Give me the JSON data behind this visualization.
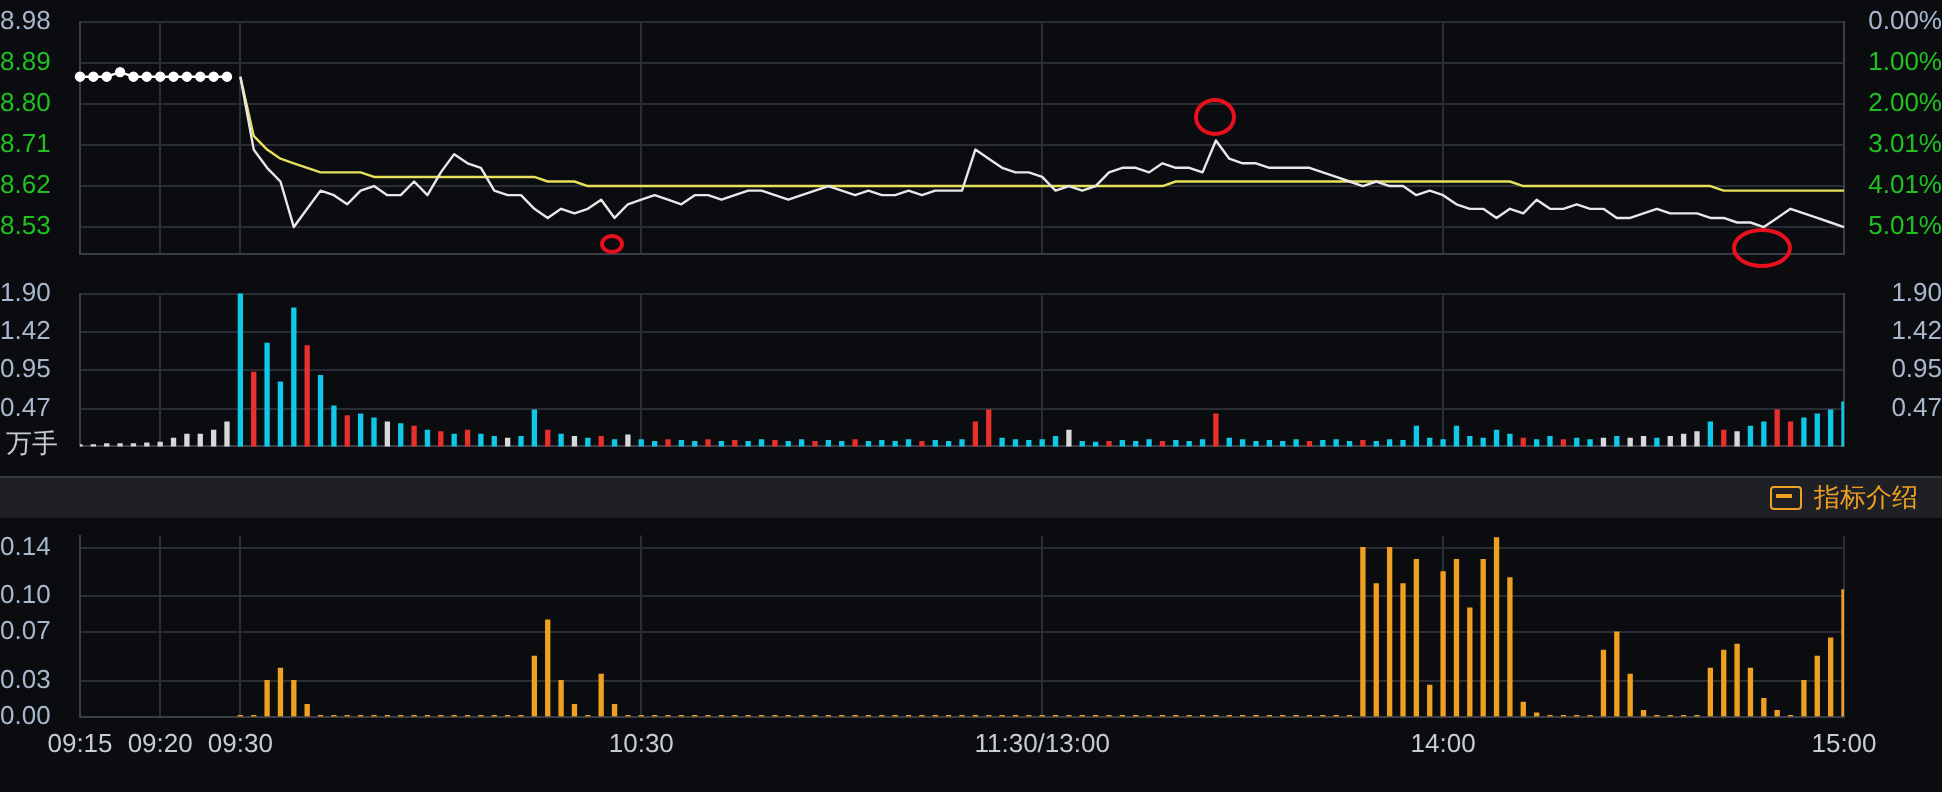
{
  "chart_data": [
    {
      "type": "line",
      "categories": [
        null,
        null,
        null,
        null,
        null,
        null,
        null,
        null,
        null,
        null,
        null,
        null,
        null,
        null,
        null,
        null,
        null,
        null,
        null,
        null,
        null,
        null,
        null,
        null,
        null,
        null,
        null,
        null,
        null,
        null,
        null,
        null,
        null,
        null,
        null,
        null,
        null,
        null,
        null,
        null,
        null,
        null,
        null,
        null,
        null,
        null,
        null,
        null,
        null,
        null,
        null,
        null,
        null,
        null,
        null,
        null,
        null,
        null,
        null,
        null,
        null,
        null,
        null,
        null,
        null,
        null,
        null,
        null,
        null,
        null,
        null,
        null,
        null,
        null,
        null,
        null,
        null,
        null,
        null,
        null,
        null,
        null,
        null,
        null,
        null,
        null,
        null,
        null,
        null,
        null,
        null,
        null,
        null,
        null,
        null,
        null,
        null,
        null,
        null,
        null,
        null,
        null,
        null,
        null,
        null,
        null,
        null,
        null,
        null,
        null,
        null,
        null,
        null,
        null,
        null,
        null,
        null,
        null,
        null,
        null,
        null,
        null,
        null,
        null,
        null,
        null,
        null,
        null,
        null,
        null,
        null,
        null,
        null
      ],
      "ylim": [
        8.47,
        8.98
      ],
      "yticks": [
        8.98,
        8.89,
        {
          "value": 8.8,
          "label": "8.80"
        },
        8.71,
        8.62,
        8.53
      ],
      "y2lim": [
        5.68,
        0
      ],
      "y2ticks": [
        {
          "value": 0,
          "label": "0.00%"
        },
        {
          "value": 1,
          "label": "1.00%"
        },
        {
          "value": 2,
          "label": "2.00%"
        },
        {
          "value": 3.01,
          "label": "3.01%"
        },
        {
          "value": 4.01,
          "label": "4.01%"
        },
        {
          "value": 5.01,
          "label": "5.01%"
        }
      ],
      "grid": true,
      "tick_labels": "y",
      "series": [
        {
          "color": "#ffffff",
          "marker": "circle",
          "values": [
            8.86,
            8.86,
            8.86,
            8.87,
            8.86,
            8.86,
            8.86,
            8.86,
            8.86,
            8.86,
            8.86,
            8.86,
            null,
            null,
            null,
            null,
            null,
            null,
            null,
            null,
            null,
            null,
            null,
            null,
            null,
            null,
            null,
            null,
            null,
            null,
            null,
            null,
            null,
            null,
            null,
            null,
            null,
            null,
            null,
            null,
            null,
            null,
            null,
            null,
            null,
            null,
            null,
            null,
            null,
            null,
            null,
            null,
            null,
            null,
            null,
            null,
            null,
            null,
            null,
            null,
            null,
            null,
            null,
            null,
            null,
            null,
            null,
            null,
            null,
            null,
            null,
            null,
            null,
            null,
            null,
            null,
            null,
            null,
            null,
            null,
            null,
            null,
            null,
            null,
            null,
            null,
            null,
            null,
            null,
            null,
            null,
            null,
            null,
            null,
            null,
            null,
            null,
            null,
            null,
            null,
            null,
            null,
            null,
            null,
            null,
            null,
            null,
            null,
            null,
            null,
            null,
            null,
            null,
            null,
            null,
            null,
            null,
            null,
            null,
            null,
            null,
            null,
            null,
            null,
            null,
            null,
            null,
            null,
            null,
            null,
            null,
            null,
            null
          ]
        },
        {
          "color": "#e8e8e8",
          "values": [
            null,
            null,
            null,
            null,
            null,
            null,
            null,
            null,
            null,
            null,
            null,
            null,
            8.86,
            8.7,
            8.66,
            8.63,
            8.53,
            8.57,
            8.61,
            8.6,
            8.58,
            8.61,
            8.62,
            8.6,
            8.6,
            8.63,
            8.6,
            8.65,
            8.69,
            8.67,
            8.66,
            8.61,
            8.6,
            8.6,
            8.57,
            8.55,
            8.57,
            8.56,
            8.57,
            8.59,
            8.55,
            8.58,
            8.59,
            8.6,
            8.59,
            8.58,
            8.6,
            8.6,
            8.59,
            8.6,
            8.61,
            8.61,
            8.6,
            8.59,
            8.6,
            8.61,
            8.62,
            8.61,
            8.6,
            8.61,
            8.6,
            8.6,
            8.61,
            8.6,
            8.61,
            8.61,
            8.61,
            8.7,
            8.68,
            8.66,
            8.65,
            8.65,
            8.64,
            8.61,
            8.62,
            8.61,
            8.62,
            8.65,
            8.66,
            8.66,
            8.65,
            8.67,
            8.66,
            8.66,
            8.65,
            8.72,
            8.68,
            8.67,
            8.67,
            8.66,
            8.66,
            8.66,
            8.66,
            8.65,
            8.64,
            8.63,
            8.62,
            8.63,
            8.62,
            8.62,
            8.6,
            8.61,
            8.6,
            8.58,
            8.57,
            8.57,
            8.55,
            8.57,
            8.56,
            8.59,
            8.57,
            8.57,
            8.58,
            8.57,
            8.57,
            8.55,
            8.55,
            8.56,
            8.57,
            8.56,
            8.56,
            8.56,
            8.55,
            8.55,
            8.54,
            8.54,
            8.53,
            8.55,
            8.57,
            8.56,
            8.55,
            8.54,
            8.53
          ]
        },
        {
          "color": "#e6e05a",
          "values": [
            null,
            null,
            null,
            null,
            null,
            null,
            null,
            null,
            null,
            null,
            null,
            null,
            8.86,
            8.73,
            8.7,
            8.68,
            8.67,
            8.66,
            8.65,
            8.65,
            8.65,
            8.65,
            8.64,
            8.64,
            8.64,
            8.64,
            8.64,
            8.64,
            8.64,
            8.64,
            8.64,
            8.64,
            8.64,
            8.64,
            8.64,
            8.63,
            8.63,
            8.63,
            8.62,
            8.62,
            8.62,
            8.62,
            8.62,
            8.62,
            8.62,
            8.62,
            8.62,
            8.62,
            8.62,
            8.62,
            8.62,
            8.62,
            8.62,
            8.62,
            8.62,
            8.62,
            8.62,
            8.62,
            8.62,
            8.62,
            8.62,
            8.62,
            8.62,
            8.62,
            8.62,
            8.62,
            8.62,
            8.62,
            8.62,
            8.62,
            8.62,
            8.62,
            8.62,
            8.62,
            8.62,
            8.62,
            8.62,
            8.62,
            8.62,
            8.62,
            8.62,
            8.62,
            8.63,
            8.63,
            8.63,
            8.63,
            8.63,
            8.63,
            8.63,
            8.63,
            8.63,
            8.63,
            8.63,
            8.63,
            8.63,
            8.63,
            8.63,
            8.63,
            8.63,
            8.63,
            8.63,
            8.63,
            8.63,
            8.63,
            8.63,
            8.63,
            8.63,
            8.63,
            8.62,
            8.62,
            8.62,
            8.62,
            8.62,
            8.62,
            8.62,
            8.62,
            8.62,
            8.62,
            8.62,
            8.62,
            8.62,
            8.62,
            8.62,
            8.61,
            8.61,
            8.61,
            8.61,
            8.61,
            8.61,
            8.61,
            8.61,
            8.61,
            8.61
          ]
        }
      ]
    },
    {
      "type": "bar",
      "categories": [
        null,
        null,
        null,
        null,
        null,
        null,
        null,
        null,
        null,
        null,
        null,
        null,
        null,
        null,
        null,
        null,
        null,
        null,
        null,
        null,
        null,
        null,
        null,
        null,
        null,
        null,
        null,
        null,
        null,
        null,
        null,
        null,
        null,
        null,
        null,
        null,
        null,
        null,
        null,
        null,
        null,
        null,
        null,
        null,
        null,
        null,
        null,
        null,
        null,
        null,
        null,
        null,
        null,
        null,
        null,
        null,
        null,
        null,
        null,
        null,
        null,
        null,
        null,
        null,
        null,
        null,
        null,
        null,
        null,
        null,
        null,
        null,
        null,
        null,
        null,
        null,
        null,
        null,
        null,
        null,
        null,
        null,
        null,
        null,
        null,
        null,
        null,
        null,
        null,
        null,
        null,
        null,
        null,
        null,
        null,
        null,
        null,
        null,
        null,
        null,
        null,
        null,
        null,
        null,
        null,
        null,
        null,
        null,
        null,
        null,
        null,
        null,
        null,
        null,
        null,
        null,
        null,
        null,
        null,
        null,
        null,
        null,
        null,
        null,
        null,
        null,
        null,
        null,
        null,
        null,
        null,
        null,
        null
      ],
      "ylim": [
        0,
        1.9
      ],
      "yticks": [
        {
          "value": 1.9,
          "label": "1.90"
        },
        1.42,
        0.95,
        0.47
      ],
      "y2lim": [
        0,
        1.9
      ],
      "y2ticks": [
        {
          "value": 1.9,
          "label": "1.90"
        },
        1.42,
        0.95,
        0.47
      ],
      "ylabel": "万手",
      "grid": true,
      "tick_labels": "y",
      "series": [
        {
          "values": [
            0.02,
            0.02,
            0.03,
            0.03,
            0.03,
            0.04,
            0.05,
            0.1,
            0.15,
            0.15,
            0.2,
            0.3,
            1.9,
            0.92,
            1.28,
            0.8,
            1.72,
            1.25,
            0.88,
            0.5,
            0.38,
            0.4,
            0.35,
            0.3,
            0.28,
            0.25,
            0.2,
            0.18,
            0.15,
            0.2,
            0.15,
            0.12,
            0.1,
            0.12,
            0.45,
            0.2,
            0.15,
            0.12,
            0.1,
            0.12,
            0.08,
            0.14,
            0.08,
            0.06,
            0.08,
            0.07,
            0.06,
            0.08,
            0.06,
            0.07,
            0.06,
            0.08,
            0.07,
            0.06,
            0.08,
            0.06,
            0.07,
            0.06,
            0.08,
            0.06,
            0.07,
            0.06,
            0.08,
            0.06,
            0.07,
            0.06,
            0.08,
            0.3,
            0.45,
            0.1,
            0.08,
            0.07,
            0.08,
            0.12,
            0.2,
            0.06,
            0.05,
            0.06,
            0.07,
            0.06,
            0.08,
            0.06,
            0.07,
            0.06,
            0.08,
            0.4,
            0.1,
            0.08,
            0.06,
            0.07,
            0.06,
            0.08,
            0.06,
            0.07,
            0.08,
            0.06,
            0.07,
            0.06,
            0.08,
            0.07,
            0.25,
            0.1,
            0.08,
            0.25,
            0.12,
            0.1,
            0.2,
            0.15,
            0.1,
            0.08,
            0.12,
            0.08,
            0.1,
            0.08,
            0.1,
            0.12,
            0.1,
            0.12,
            0.1,
            0.12,
            0.15,
            0.18,
            0.3,
            0.2,
            0.18,
            0.25,
            0.3,
            0.45,
            0.3,
            0.35,
            0.4,
            0.45,
            0.55
          ],
          "colors": [
            "#d8d8d8",
            "#d8d8d8",
            "#d8d8d8",
            "#d8d8d8",
            "#d8d8d8",
            "#d8d8d8",
            "#d8d8d8",
            "#d8d8d8",
            "#d8d8d8",
            "#d8d8d8",
            "#d8d8d8",
            "#d8d8d8",
            "#10c8e8",
            "#e8302c",
            "#10c8e8",
            "#10c8e8",
            "#10c8e8",
            "#e8302c",
            "#10c8e8",
            "#10c8e8",
            "#e8302c",
            "#10c8e8",
            "#10c8e8",
            "#d8d8d8",
            "#10c8e8",
            "#e8302c",
            "#10c8e8",
            "#e8302c",
            "#10c8e8",
            "#e8302c",
            "#10c8e8",
            "#10c8e8",
            "#d8d8d8",
            "#10c8e8",
            "#10c8e8",
            "#e8302c",
            "#10c8e8",
            "#d8d8d8",
            "#10c8e8",
            "#e8302c",
            "#10c8e8",
            "#d8d8d8",
            "#10c8e8",
            "#10c8e8",
            "#e8302c",
            "#10c8e8",
            "#10c8e8",
            "#e8302c",
            "#10c8e8",
            "#e8302c",
            "#10c8e8",
            "#10c8e8",
            "#e8302c",
            "#10c8e8",
            "#10c8e8",
            "#e8302c",
            "#10c8e8",
            "#10c8e8",
            "#e8302c",
            "#10c8e8",
            "#10c8e8",
            "#10c8e8",
            "#10c8e8",
            "#e8302c",
            "#10c8e8",
            "#10c8e8",
            "#10c8e8",
            "#e8302c",
            "#e8302c",
            "#10c8e8",
            "#10c8e8",
            "#10c8e8",
            "#10c8e8",
            "#10c8e8",
            "#d8d8d8",
            "#10c8e8",
            "#10c8e8",
            "#e8302c",
            "#10c8e8",
            "#10c8e8",
            "#10c8e8",
            "#e8302c",
            "#10c8e8",
            "#10c8e8",
            "#10c8e8",
            "#e8302c",
            "#10c8e8",
            "#10c8e8",
            "#10c8e8",
            "#10c8e8",
            "#10c8e8",
            "#10c8e8",
            "#e8302c",
            "#10c8e8",
            "#10c8e8",
            "#10c8e8",
            "#e8302c",
            "#10c8e8",
            "#10c8e8",
            "#10c8e8",
            "#10c8e8",
            "#10c8e8",
            "#10c8e8",
            "#10c8e8",
            "#10c8e8",
            "#10c8e8",
            "#10c8e8",
            "#10c8e8",
            "#e8302c",
            "#10c8e8",
            "#10c8e8",
            "#e8302c",
            "#10c8e8",
            "#10c8e8",
            "#d8d8d8",
            "#10c8e8",
            "#d8d8d8",
            "#d8d8d8",
            "#10c8e8",
            "#d8d8d8",
            "#d8d8d8",
            "#d8d8d8",
            "#10c8e8",
            "#e8302c",
            "#d8d8d8",
            "#10c8e8",
            "#10c8e8",
            "#e8302c",
            "#e8302c",
            "#10c8e8",
            "#10c8e8",
            "#10c8e8",
            "#10c8e8"
          ]
        }
      ]
    },
    {
      "type": "bar",
      "categories": [
        "09:15",
        null,
        null,
        null,
        null,
        null,
        "09:20",
        null,
        null,
        null,
        null,
        null,
        "09:30",
        null,
        null,
        null,
        null,
        null,
        null,
        null,
        null,
        null,
        null,
        null,
        null,
        null,
        null,
        null,
        null,
        null,
        null,
        null,
        null,
        null,
        null,
        null,
        null,
        null,
        null,
        null,
        null,
        null,
        "10:30",
        null,
        null,
        null,
        null,
        null,
        null,
        null,
        null,
        null,
        null,
        null,
        null,
        null,
        null,
        null,
        null,
        null,
        null,
        null,
        null,
        null,
        null,
        null,
        null,
        null,
        null,
        null,
        null,
        null,
        "11:30/13:00",
        null,
        null,
        null,
        null,
        null,
        null,
        null,
        null,
        null,
        null,
        null,
        null,
        null,
        null,
        null,
        null,
        null,
        null,
        null,
        null,
        null,
        null,
        null,
        null,
        null,
        null,
        null,
        null,
        null,
        "14:00",
        null,
        null,
        null,
        null,
        null,
        null,
        null,
        null,
        null,
        null,
        null,
        null,
        null,
        null,
        null,
        null,
        null,
        null,
        null,
        null,
        null,
        null,
        null,
        null,
        null,
        null,
        null,
        null,
        null,
        "15:00"
      ],
      "ylim": [
        0,
        0.15
      ],
      "yticks": [
        0.14,
        {
          "value": 0.1,
          "label": "0.10"
        },
        0.07,
        0.03,
        {
          "value": 0,
          "label": "0.00"
        }
      ],
      "grid": true,
      "annotations": [
        "指标介绍"
      ],
      "series": [
        {
          "color": "#f0a020",
          "values": [
            null,
            null,
            null,
            null,
            null,
            null,
            null,
            null,
            null,
            null,
            null,
            null,
            0.001,
            0.001,
            0.03,
            0.04,
            0.03,
            0.01,
            0.001,
            0.001,
            0.001,
            0.001,
            0.001,
            0.001,
            0.001,
            0.001,
            0.001,
            0.001,
            0.001,
            0.001,
            0.001,
            0.001,
            0.001,
            0.001,
            0.05,
            0.08,
            0.03,
            0.01,
            0.001,
            0.035,
            0.01,
            0.001,
            0.001,
            0.001,
            0.001,
            0.001,
            0.001,
            0.001,
            0.001,
            0.001,
            0.001,
            0.001,
            0.001,
            0.001,
            0.001,
            0.001,
            0.001,
            0.001,
            0.001,
            0.001,
            0.001,
            0.001,
            0.001,
            0.001,
            0.001,
            0.001,
            0.001,
            0.001,
            0.001,
            0.001,
            0.001,
            0.001,
            0.001,
            0.001,
            0.001,
            0.001,
            0.001,
            0.001,
            0.001,
            0.001,
            0.001,
            0.001,
            0.001,
            0.001,
            0.001,
            0.001,
            0.001,
            0.001,
            0.001,
            0.001,
            0.001,
            0.001,
            0.001,
            0.001,
            0.001,
            0.001,
            0.14,
            0.11,
            0.14,
            0.11,
            0.13,
            0.026,
            0.12,
            0.13,
            0.09,
            0.13,
            0.148,
            0.115,
            0.012,
            0.003,
            0.001,
            0.001,
            0.001,
            0.001,
            0.055,
            0.07,
            0.035,
            0.005,
            0.001,
            0.001,
            0.001,
            0.001,
            0.04,
            0.055,
            0.06,
            0.04,
            0.015,
            0.005,
            0.001,
            0.03,
            0.05,
            0.065,
            0.105
          ]
        }
      ]
    }
  ]
}
